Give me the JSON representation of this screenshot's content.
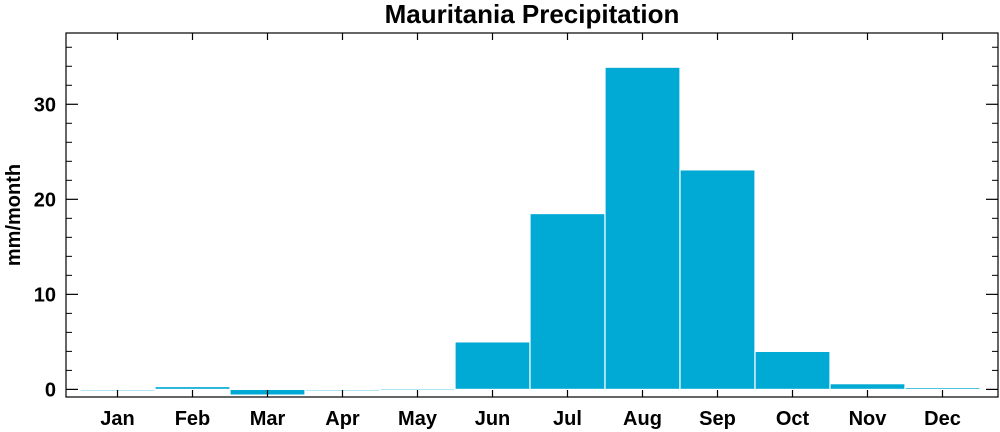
{
  "chart_data": {
    "type": "bar",
    "title": "Mauritania Precipitation",
    "xlabel": "",
    "ylabel": "mm/month",
    "categories": [
      "Jan",
      "Feb",
      "Mar",
      "Apr",
      "May",
      "Jun",
      "Jul",
      "Aug",
      "Sep",
      "Oct",
      "Nov",
      "Dec"
    ],
    "values": [
      0,
      0.3,
      -0.6,
      -0.1,
      0.1,
      5.0,
      18.5,
      33.9,
      23.1,
      4.0,
      0.6,
      0.2
    ],
    "ylim": [
      -0.8,
      37.5
    ],
    "yticks": [
      0,
      10,
      20,
      30
    ],
    "grid": false,
    "bar_color": "#00aad4",
    "bar_edge_color": "#ffffff"
  }
}
